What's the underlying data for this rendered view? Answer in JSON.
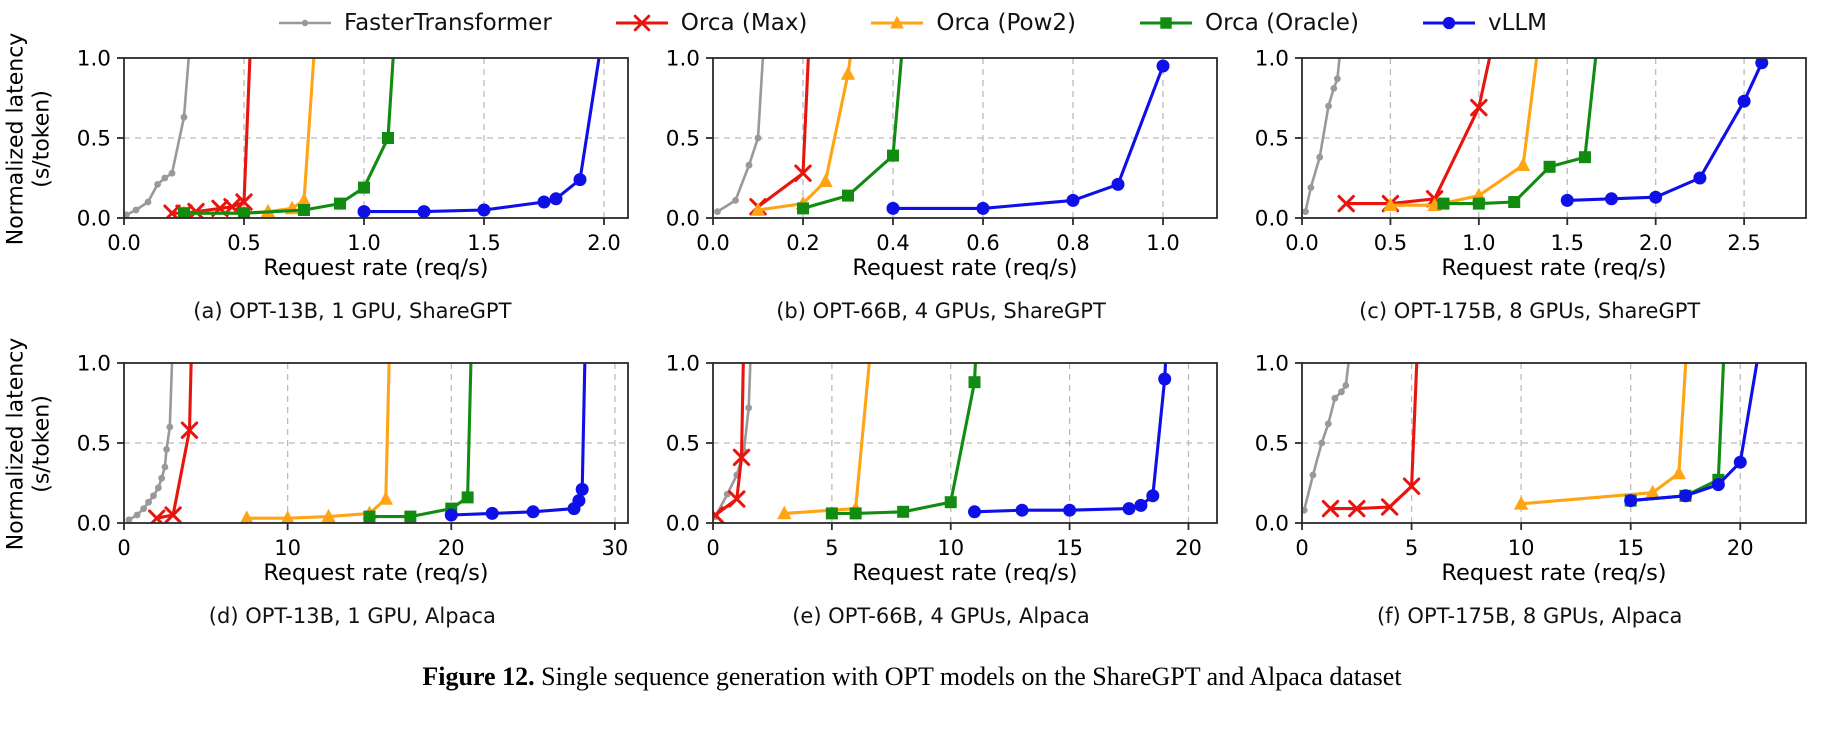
{
  "axes": {
    "ylabel_line1": "Normalized latency",
    "ylabel_line2": "(s/token)",
    "yticks": {
      "values": [
        0.0,
        0.5,
        1.0
      ],
      "labels": [
        "0.0",
        "0.5",
        "1.0"
      ]
    }
  },
  "legend": {
    "items": [
      {
        "label": "FasterTransformer",
        "color": "#999999",
        "marker": "dot"
      },
      {
        "label": "Orca (Max)",
        "color": "#e8150e",
        "marker": "x"
      },
      {
        "label": "Orca (Pow2)",
        "color": "#ffa415",
        "marker": "triangle"
      },
      {
        "label": "Orca (Oracle)",
        "color": "#118c11",
        "marker": "square"
      },
      {
        "label": "vLLM",
        "color": "#0f0fe8",
        "marker": "circle"
      }
    ]
  },
  "caption": {
    "prefix": "Figure 12.",
    "text": " Single sequence generation with OPT models on the ShareGPT and Alpaca dataset"
  },
  "chart_data": [
    {
      "id": "a",
      "type": "line",
      "caption": "(a) OPT-13B, 1 GPU, ShareGPT",
      "xlabel": "Request rate (req/s)",
      "ylabel": "Normalized latency (s/token)",
      "xlim": [
        0,
        2.1
      ],
      "ylim": [
        0,
        1.0
      ],
      "xticks": {
        "values": [
          0.0,
          0.5,
          1.0,
          1.5,
          2.0
        ],
        "labels": [
          "0.0",
          "0.5",
          "1.0",
          "1.5",
          "2.0"
        ]
      },
      "series": [
        {
          "name": "FasterTransformer",
          "points": [
            [
              0.01,
              0.02
            ],
            [
              0.05,
              0.05
            ],
            [
              0.1,
              0.1
            ],
            [
              0.14,
              0.21
            ],
            [
              0.17,
              0.25
            ],
            [
              0.2,
              0.28
            ],
            [
              0.25,
              0.63
            ],
            [
              0.28,
              1.2
            ]
          ]
        },
        {
          "name": "Orca (Max)",
          "points": [
            [
              0.2,
              0.03
            ],
            [
              0.25,
              0.03
            ],
            [
              0.3,
              0.04
            ],
            [
              0.4,
              0.06
            ],
            [
              0.45,
              0.07
            ],
            [
              0.5,
              0.1
            ],
            [
              0.53,
              1.2
            ]
          ]
        },
        {
          "name": "Orca (Pow2)",
          "points": [
            [
              0.25,
              0.03
            ],
            [
              0.5,
              0.03
            ],
            [
              0.6,
              0.04
            ],
            [
              0.7,
              0.06
            ],
            [
              0.75,
              0.11
            ],
            [
              0.8,
              1.2
            ]
          ]
        },
        {
          "name": "Orca (Oracle)",
          "points": [
            [
              0.25,
              0.03
            ],
            [
              0.5,
              0.03
            ],
            [
              0.75,
              0.05
            ],
            [
              0.9,
              0.09
            ],
            [
              1.0,
              0.19
            ],
            [
              1.1,
              0.5
            ],
            [
              1.13,
              1.2
            ]
          ]
        },
        {
          "name": "vLLM",
          "points": [
            [
              1.0,
              0.04
            ],
            [
              1.25,
              0.04
            ],
            [
              1.5,
              0.05
            ],
            [
              1.75,
              0.1
            ],
            [
              1.8,
              0.12
            ],
            [
              1.9,
              0.24
            ],
            [
              2.0,
              1.2
            ]
          ]
        }
      ]
    },
    {
      "id": "b",
      "type": "line",
      "caption": "(b) OPT-66B, 4 GPUs, ShareGPT",
      "xlabel": "Request rate (req/s)",
      "ylabel": "Normalized latency (s/token)",
      "xlim": [
        0,
        1.12
      ],
      "ylim": [
        0,
        1.0
      ],
      "xticks": {
        "values": [
          0.0,
          0.2,
          0.4,
          0.6,
          0.8,
          1.0
        ],
        "labels": [
          "0.0",
          "0.2",
          "0.4",
          "0.6",
          "0.8",
          "1.0"
        ]
      },
      "series": [
        {
          "name": "FasterTransformer",
          "points": [
            [
              0.01,
              0.04
            ],
            [
              0.05,
              0.11
            ],
            [
              0.08,
              0.33
            ],
            [
              0.1,
              0.5
            ],
            [
              0.115,
              1.2
            ]
          ]
        },
        {
          "name": "Orca (Max)",
          "points": [
            [
              0.1,
              0.07
            ],
            [
              0.2,
              0.28
            ],
            [
              0.215,
              1.2
            ]
          ]
        },
        {
          "name": "Orca (Pow2)",
          "points": [
            [
              0.1,
              0.05
            ],
            [
              0.2,
              0.09
            ],
            [
              0.25,
              0.23
            ],
            [
              0.3,
              0.9
            ],
            [
              0.315,
              1.2
            ]
          ]
        },
        {
          "name": "Orca (Oracle)",
          "points": [
            [
              0.2,
              0.06
            ],
            [
              0.3,
              0.14
            ],
            [
              0.4,
              0.39
            ],
            [
              0.425,
              1.2
            ]
          ]
        },
        {
          "name": "vLLM",
          "points": [
            [
              0.4,
              0.06
            ],
            [
              0.6,
              0.06
            ],
            [
              0.8,
              0.11
            ],
            [
              0.9,
              0.21
            ],
            [
              1.0,
              0.95
            ]
          ]
        }
      ]
    },
    {
      "id": "c",
      "type": "line",
      "caption": "(c) OPT-175B, 8 GPUs, ShareGPT",
      "xlabel": "Request rate (req/s)",
      "ylabel": "Normalized latency (s/token)",
      "xlim": [
        0,
        2.85
      ],
      "ylim": [
        0,
        1.0
      ],
      "xticks": {
        "values": [
          0.0,
          0.5,
          1.0,
          1.5,
          2.0,
          2.5
        ],
        "labels": [
          "0.0",
          "0.5",
          "1.0",
          "1.5",
          "2.0",
          "2.5"
        ]
      },
      "series": [
        {
          "name": "FasterTransformer",
          "points": [
            [
              0.02,
              0.04
            ],
            [
              0.05,
              0.19
            ],
            [
              0.1,
              0.38
            ],
            [
              0.15,
              0.7
            ],
            [
              0.18,
              0.81
            ],
            [
              0.2,
              0.87
            ],
            [
              0.23,
              1.2
            ]
          ]
        },
        {
          "name": "Orca (Max)",
          "points": [
            [
              0.25,
              0.09
            ],
            [
              0.5,
              0.09
            ],
            [
              0.75,
              0.12
            ],
            [
              1.0,
              0.69
            ],
            [
              1.1,
              1.2
            ]
          ]
        },
        {
          "name": "Orca (Pow2)",
          "points": [
            [
              0.5,
              0.08
            ],
            [
              0.75,
              0.08
            ],
            [
              1.0,
              0.14
            ],
            [
              1.25,
              0.33
            ],
            [
              1.35,
              1.2
            ]
          ]
        },
        {
          "name": "Orca (Oracle)",
          "points": [
            [
              0.8,
              0.09
            ],
            [
              1.0,
              0.09
            ],
            [
              1.2,
              0.1
            ],
            [
              1.4,
              0.32
            ],
            [
              1.6,
              0.38
            ],
            [
              1.68,
              1.2
            ]
          ]
        },
        {
          "name": "vLLM",
          "points": [
            [
              1.5,
              0.11
            ],
            [
              1.75,
              0.12
            ],
            [
              2.0,
              0.13
            ],
            [
              2.25,
              0.25
            ],
            [
              2.5,
              0.73
            ],
            [
              2.6,
              0.97
            ]
          ]
        }
      ]
    },
    {
      "id": "d",
      "type": "line",
      "caption": "(d) OPT-13B, 1 GPU, Alpaca",
      "xlabel": "Request rate (req/s)",
      "ylabel": "Normalized latency (s/token)",
      "xlim": [
        0,
        30.8
      ],
      "ylim": [
        0,
        1.0
      ],
      "xticks": {
        "values": [
          0,
          10,
          20,
          30
        ],
        "labels": [
          "0",
          "10",
          "20",
          "30"
        ]
      },
      "series": [
        {
          "name": "FasterTransformer",
          "points": [
            [
              0.3,
              0.02
            ],
            [
              0.8,
              0.05
            ],
            [
              1.2,
              0.09
            ],
            [
              1.5,
              0.13
            ],
            [
              1.8,
              0.17
            ],
            [
              2.1,
              0.22
            ],
            [
              2.3,
              0.28
            ],
            [
              2.5,
              0.35
            ],
            [
              2.6,
              0.46
            ],
            [
              2.8,
              0.6
            ],
            [
              3.0,
              1.2
            ]
          ]
        },
        {
          "name": "Orca (Max)",
          "points": [
            [
              2,
              0.03
            ],
            [
              3,
              0.05
            ],
            [
              4,
              0.58
            ],
            [
              4.15,
              1.2
            ]
          ]
        },
        {
          "name": "Orca (Pow2)",
          "points": [
            [
              7.5,
              0.03
            ],
            [
              10,
              0.03
            ],
            [
              12.5,
              0.04
            ],
            [
              15,
              0.06
            ],
            [
              16,
              0.15
            ],
            [
              16.25,
              1.2
            ]
          ]
        },
        {
          "name": "Orca (Oracle)",
          "points": [
            [
              15,
              0.04
            ],
            [
              17.5,
              0.04
            ],
            [
              20,
              0.09
            ],
            [
              21,
              0.16
            ],
            [
              21.25,
              1.2
            ]
          ]
        },
        {
          "name": "vLLM",
          "points": [
            [
              20,
              0.05
            ],
            [
              22.5,
              0.06
            ],
            [
              25,
              0.07
            ],
            [
              27.5,
              0.09
            ],
            [
              27.8,
              0.14
            ],
            [
              28,
              0.21
            ],
            [
              28.2,
              1.2
            ]
          ]
        }
      ]
    },
    {
      "id": "e",
      "type": "line",
      "caption": "(e) OPT-66B, 4 GPUs, Alpaca",
      "xlabel": "Request rate (req/s)",
      "ylabel": "Normalized latency (s/token)",
      "xlim": [
        0,
        21.2
      ],
      "ylim": [
        0,
        1.0
      ],
      "xticks": {
        "values": [
          0,
          5,
          10,
          15,
          20
        ],
        "labels": [
          "0",
          "5",
          "10",
          "15",
          "20"
        ]
      },
      "series": [
        {
          "name": "FasterTransformer",
          "points": [
            [
              0.1,
              0.04
            ],
            [
              0.6,
              0.18
            ],
            [
              1.0,
              0.3
            ],
            [
              1.3,
              0.45
            ],
            [
              1.5,
              0.72
            ],
            [
              1.62,
              1.2
            ]
          ]
        },
        {
          "name": "Orca (Max)",
          "points": [
            [
              0.1,
              0.05
            ],
            [
              1.0,
              0.15
            ],
            [
              1.2,
              0.41
            ],
            [
              1.3,
              1.2
            ]
          ]
        },
        {
          "name": "Orca (Pow2)",
          "points": [
            [
              3,
              0.06
            ],
            [
              6,
              0.09
            ],
            [
              6.7,
              1.2
            ]
          ]
        },
        {
          "name": "Orca (Oracle)",
          "points": [
            [
              5,
              0.06
            ],
            [
              6,
              0.06
            ],
            [
              8,
              0.07
            ],
            [
              10,
              0.13
            ],
            [
              11,
              0.88
            ],
            [
              11.1,
              1.2
            ]
          ]
        },
        {
          "name": "vLLM",
          "points": [
            [
              11,
              0.07
            ],
            [
              13,
              0.08
            ],
            [
              15,
              0.08
            ],
            [
              17.5,
              0.09
            ],
            [
              18,
              0.11
            ],
            [
              18.5,
              0.17
            ],
            [
              19,
              0.9
            ],
            [
              19.1,
              1.2
            ]
          ]
        }
      ]
    },
    {
      "id": "f",
      "type": "line",
      "caption": "(f) OPT-175B, 8 GPUs, Alpaca",
      "xlabel": "Request rate (req/s)",
      "ylabel": "Normalized latency (s/token)",
      "xlim": [
        0,
        23
      ],
      "ylim": [
        0,
        1.0
      ],
      "xticks": {
        "values": [
          0,
          5,
          10,
          15,
          20
        ],
        "labels": [
          "0",
          "5",
          "10",
          "15",
          "20"
        ]
      },
      "series": [
        {
          "name": "FasterTransformer",
          "points": [
            [
              0.1,
              0.08
            ],
            [
              0.5,
              0.3
            ],
            [
              0.9,
              0.5
            ],
            [
              1.2,
              0.62
            ],
            [
              1.5,
              0.78
            ],
            [
              1.8,
              0.82
            ],
            [
              2.0,
              0.86
            ],
            [
              2.3,
              1.2
            ]
          ]
        },
        {
          "name": "Orca (Max)",
          "points": [
            [
              1.3,
              0.09
            ],
            [
              2.5,
              0.09
            ],
            [
              4.0,
              0.1
            ],
            [
              5.0,
              0.23
            ],
            [
              5.3,
              1.2
            ]
          ]
        },
        {
          "name": "Orca (Pow2)",
          "points": [
            [
              10,
              0.12
            ],
            [
              16,
              0.19
            ],
            [
              17.2,
              0.31
            ],
            [
              17.6,
              1.2
            ]
          ]
        },
        {
          "name": "Orca (Oracle)",
          "points": [
            [
              15,
              0.14
            ],
            [
              17.5,
              0.17
            ],
            [
              19,
              0.27
            ],
            [
              19.3,
              1.2
            ]
          ]
        },
        {
          "name": "vLLM",
          "points": [
            [
              15,
              0.14
            ],
            [
              17.5,
              0.17
            ],
            [
              19,
              0.24
            ],
            [
              20,
              0.38
            ],
            [
              21.0,
              1.2
            ]
          ]
        }
      ]
    }
  ]
}
